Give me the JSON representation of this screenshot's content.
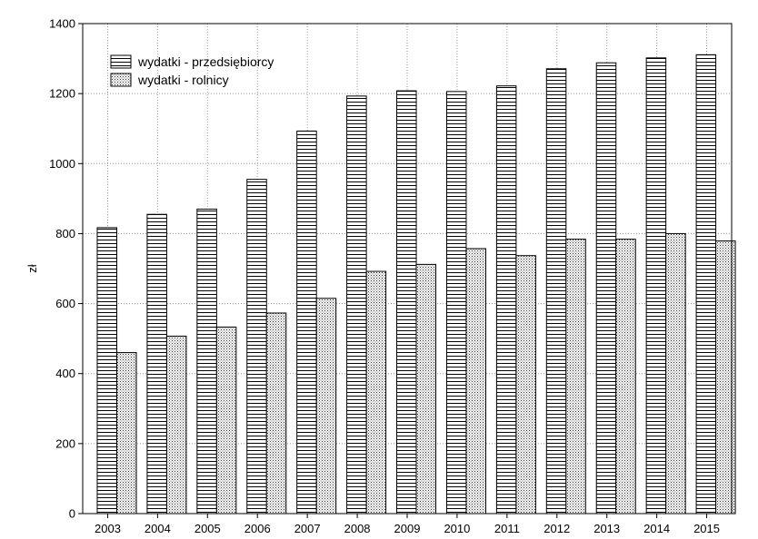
{
  "chart_data": {
    "type": "bar",
    "title": "",
    "xlabel": "",
    "ylabel": "zł",
    "ylim": [
      0,
      1400
    ],
    "yticks": [
      0,
      200,
      400,
      600,
      800,
      1000,
      1200,
      1400
    ],
    "grid": true,
    "legend_position": "top-left",
    "categories": [
      "2003",
      "2004",
      "2005",
      "2006",
      "2007",
      "2008",
      "2009",
      "2010",
      "2011",
      "2012",
      "2013",
      "2014",
      "2015"
    ],
    "series": [
      {
        "name": "wydatki - przedsiębiorcy",
        "pattern": "horizontal-lines",
        "values": [
          817,
          855,
          870,
          955,
          1093,
          1193,
          1208,
          1206,
          1222,
          1271,
          1288,
          1302,
          1311
        ]
      },
      {
        "name": "wydatki - rolnicy",
        "pattern": "dots",
        "values": [
          460,
          507,
          533,
          573,
          615,
          692,
          712,
          757,
          737,
          784,
          784,
          800,
          779
        ]
      }
    ]
  }
}
